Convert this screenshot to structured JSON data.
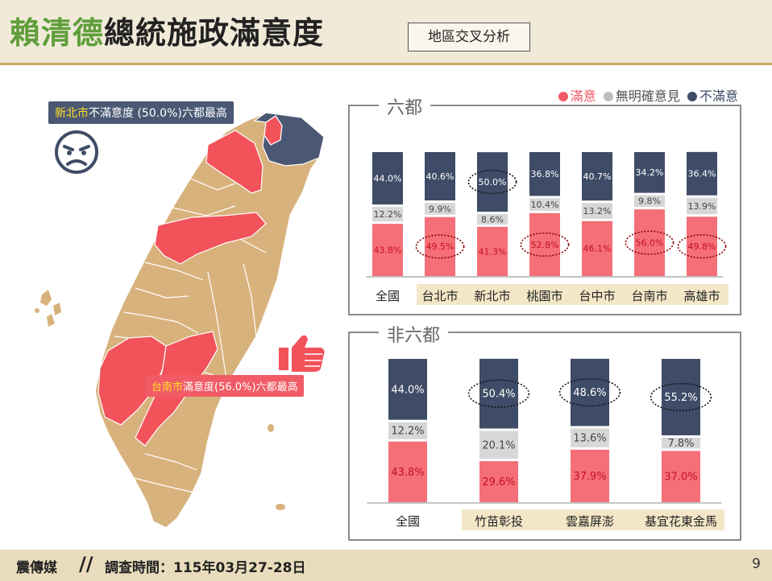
{
  "header": {
    "title_name": "賴清德",
    "title_rest": "總統施政滿意度",
    "subtitle": "地區交叉分析"
  },
  "legend": [
    {
      "label": "滿意",
      "color": "#f15b66"
    },
    {
      "label": "無明確意見",
      "color": "#bdbdbd"
    },
    {
      "label": "不滿意",
      "color": "#3f4c67"
    }
  ],
  "colors": {
    "satisfied": "#f56f78",
    "neutral": "#d7d7d7",
    "dissatisfied": "#3f4c67",
    "highlight_band": "#f3e7c7",
    "map_base": "#d8b27c"
  },
  "map": {
    "callout_top": {
      "city": "新北市",
      "text": "不滿意度 (50.0%)六都最高"
    },
    "callout_bottom": {
      "city": "台南市",
      "text": "滿意度(56.0%)六都最高"
    },
    "icons": [
      "angry-face-icon",
      "thumbs-up-icon"
    ]
  },
  "chart_data": [
    {
      "type": "bar",
      "stacked": true,
      "title": "六都",
      "categories": [
        "全國",
        "台北市",
        "新北市",
        "桃園市",
        "台中市",
        "台南市",
        "高雄市"
      ],
      "series": [
        {
          "name": "滿意",
          "values": [
            43.8,
            49.5,
            41.3,
            52.8,
            46.1,
            56.0,
            49.8
          ]
        },
        {
          "name": "無明確意見",
          "values": [
            12.2,
            9.9,
            8.6,
            10.4,
            13.2,
            9.8,
            13.9
          ]
        },
        {
          "name": "不滿意",
          "values": [
            44.0,
            40.6,
            50.0,
            36.8,
            40.7,
            34.2,
            36.4
          ]
        }
      ],
      "value_labels": {
        "satisfied": [
          "43.8%",
          "49.5%",
          "41.3%",
          "52.8%",
          "46.1%",
          "56.0%",
          "49.8%"
        ],
        "neutral": [
          "12.2%",
          "9.9%",
          "8.6%",
          "10.4%",
          "13.2%",
          "9.8%",
          "13.9%"
        ],
        "dissatisfied": [
          "44.0%",
          "40.6%",
          "50.0%",
          "36.8%",
          "40.7%",
          "34.2%",
          "36.4%"
        ]
      },
      "circled": [
        {
          "category": "台北市",
          "series": "滿意"
        },
        {
          "category": "新北市",
          "series": "不滿意"
        },
        {
          "category": "桃園市",
          "series": "滿意"
        },
        {
          "category": "台南市",
          "series": "滿意"
        },
        {
          "category": "高雄市",
          "series": "滿意"
        }
      ],
      "ylim": [
        0,
        100
      ]
    },
    {
      "type": "bar",
      "stacked": true,
      "title": "非六都",
      "categories": [
        "全國",
        "竹苗彰投",
        "雲嘉屏澎",
        "基宜花東金馬"
      ],
      "series": [
        {
          "name": "滿意",
          "values": [
            43.8,
            29.6,
            37.9,
            37.0
          ]
        },
        {
          "name": "無明確意見",
          "values": [
            12.2,
            20.1,
            13.6,
            7.8
          ]
        },
        {
          "name": "不滿意",
          "values": [
            44.0,
            50.4,
            48.6,
            55.2
          ]
        }
      ],
      "value_labels": {
        "satisfied": [
          "43.8%",
          "29.6%",
          "37.9%",
          "37.0%"
        ],
        "neutral": [
          "12.2%",
          "20.1%",
          "13.6%",
          "7.8%"
        ],
        "dissatisfied": [
          "44.0%",
          "50.4%",
          "48.6%",
          "55.2%"
        ]
      },
      "circled": [
        {
          "category": "竹苗彰投",
          "series": "不滿意"
        },
        {
          "category": "雲嘉屏澎",
          "series": "不滿意"
        },
        {
          "category": "基宜花東金馬",
          "series": "不滿意"
        }
      ],
      "ylim": [
        0,
        100
      ]
    }
  ],
  "footer": {
    "brand": "震傳媒",
    "date": "調查時間：115年03月27-28日",
    "page": "9"
  }
}
